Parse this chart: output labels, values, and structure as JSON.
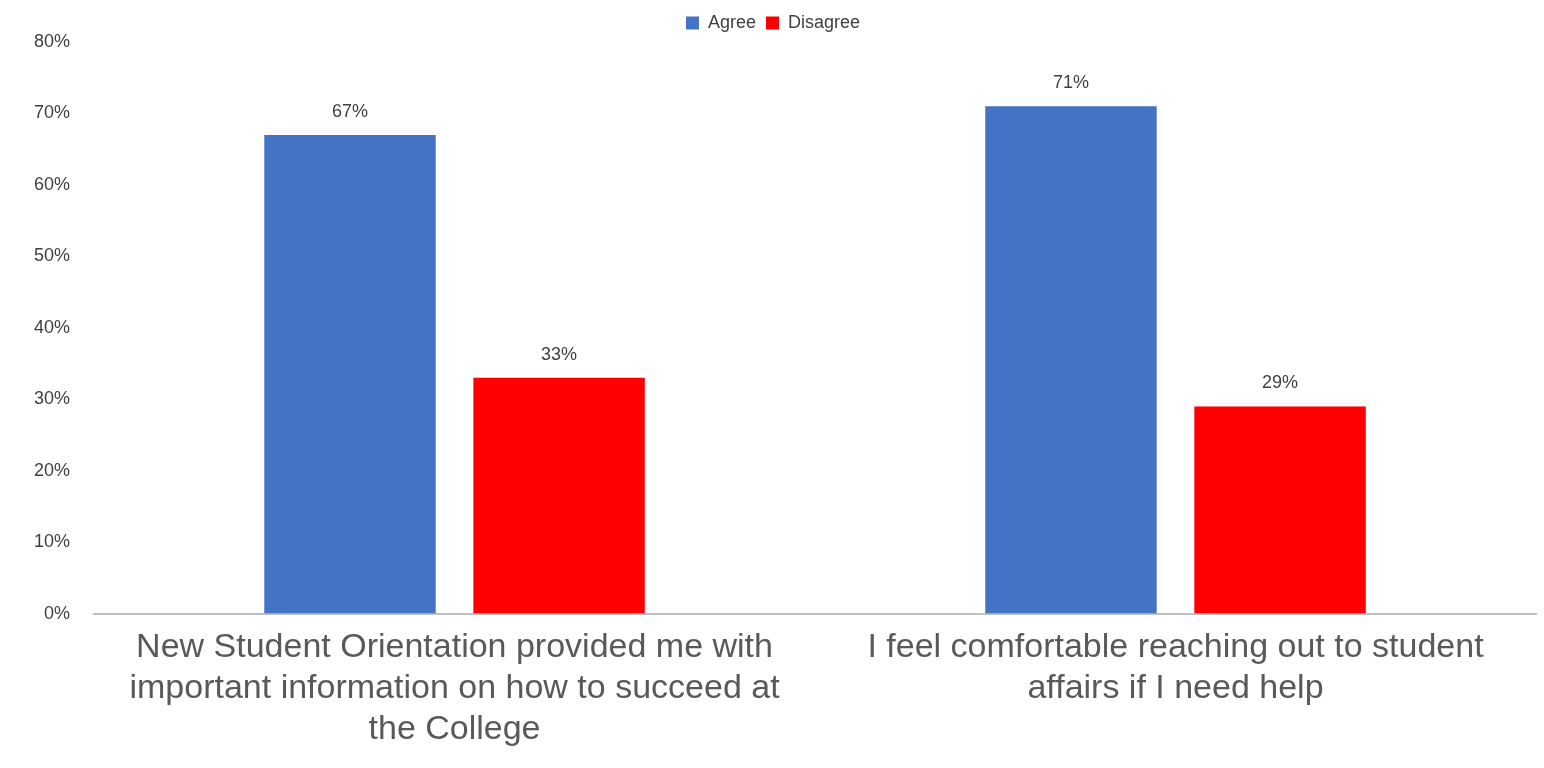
{
  "chart_data": {
    "type": "bar",
    "categories": [
      "New Student Orientation provided me with important information on how to succeed at the College",
      "I feel comfortable reaching out to student affairs if I need help"
    ],
    "series": [
      {
        "name": "Agree",
        "color": "#4472c4",
        "values": [
          67,
          71
        ],
        "value_labels": [
          "67%",
          "71%"
        ]
      },
      {
        "name": "Disagree",
        "color": "#ff0000",
        "values": [
          33,
          29
        ],
        "value_labels": [
          "33%",
          "29%"
        ]
      }
    ],
    "ylim": [
      0,
      80
    ],
    "yticks": [
      {
        "value": 0,
        "label": "0%"
      },
      {
        "value": 10,
        "label": "10%"
      },
      {
        "value": 20,
        "label": "20%"
      },
      {
        "value": 30,
        "label": "30%"
      },
      {
        "value": 40,
        "label": "40%"
      },
      {
        "value": 50,
        "label": "50%"
      },
      {
        "value": 60,
        "label": "60%"
      },
      {
        "value": 70,
        "label": "70%"
      },
      {
        "value": 80,
        "label": "80%"
      }
    ],
    "grid": false,
    "legend": "top"
  }
}
